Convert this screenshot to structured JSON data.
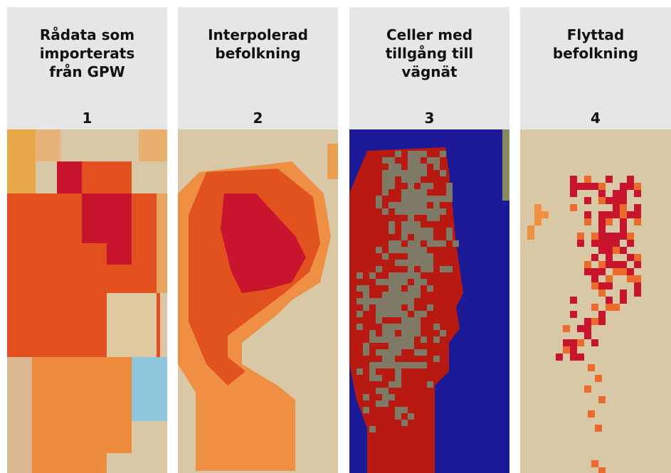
{
  "panels": [
    {
      "title": "Rådata som importerats från GPW",
      "number": 1
    },
    {
      "title": "Interpolerad befolkning",
      "number": 2
    },
    {
      "title": "Celler med tillgång till vägnät",
      "number": 3
    },
    {
      "title": "Flyttad befolkning",
      "number": 4
    }
  ]
}
